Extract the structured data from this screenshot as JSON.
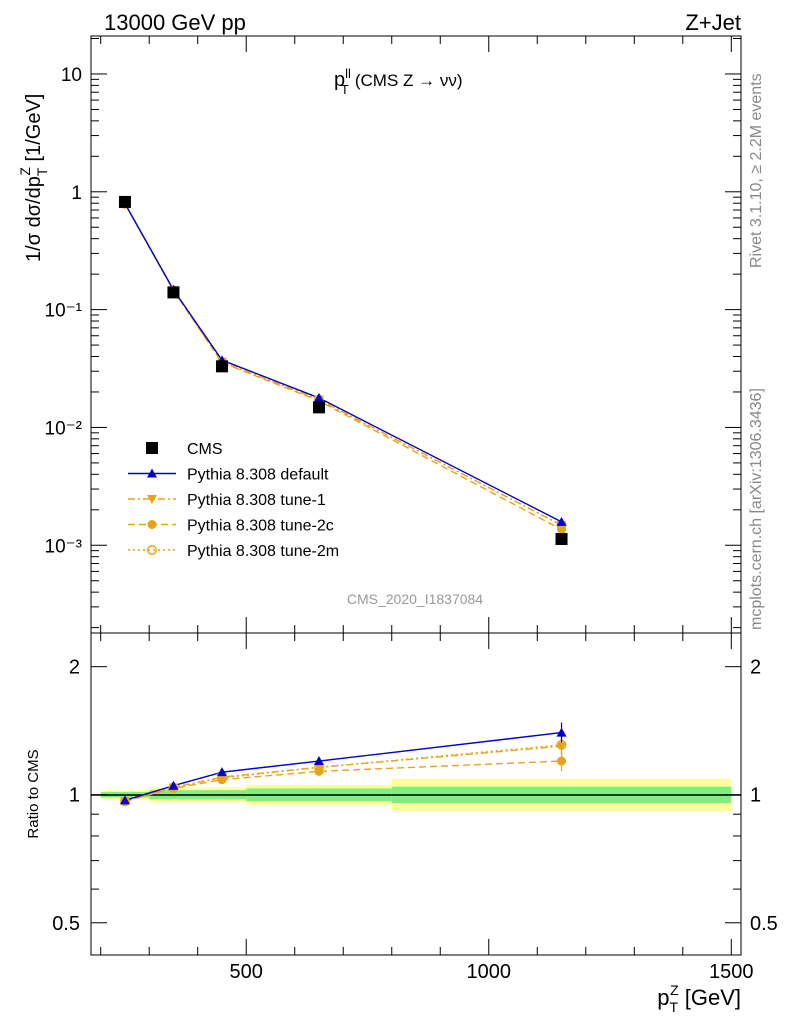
{
  "header": {
    "left": "13000 GeV pp",
    "right": "Z+Jet"
  },
  "side_text": {
    "rivet": "Rivet 3.1.10, ≥ 2.2M events",
    "mcplots": "mcplots.cern.ch [arXiv:1306.3436]"
  },
  "chart_data": [
    {
      "type": "line",
      "title": "p_T^ll (CMS Z → νν)",
      "title_parts": {
        "main": "p",
        "sup": "ll",
        "sub": "T",
        "rest": "(CMS Z → νν)"
      },
      "watermark": "CMS_2020_I1837084",
      "ylabel": "1/σ dσ/dp_T^Z [1/GeV]",
      "ylabel_parts": {
        "pre": "1/σ dσ/dp",
        "sub": "T",
        "sup": "Z",
        "post": " [1/GeV]"
      },
      "yscale": "log",
      "ylim": [
        0.00018,
        21
      ],
      "xlim": [
        180,
        1520
      ],
      "ytick_labels": [
        "10⁻³",
        "10⁻²",
        "10⁻¹",
        "1",
        "10"
      ],
      "x": [
        250,
        350,
        450,
        650,
        1150
      ],
      "series": [
        {
          "name": "CMS",
          "marker": "square",
          "color": "#000000",
          "values": [
            0.82,
            0.14,
            0.033,
            0.0148,
            0.00113
          ]
        },
        {
          "name": "Pythia 8.308 default",
          "marker": "triangle-up",
          "color": "#0000cc",
          "dash": "solid",
          "values": [
            0.795,
            0.147,
            0.0372,
            0.0178,
            0.00158
          ]
        },
        {
          "name": "Pythia 8.308 tune-1",
          "marker": "triangle-down",
          "color": "#e8a317",
          "dash": "dashdot",
          "values": [
            0.79,
            0.146,
            0.036,
            0.0172,
            0.00148
          ]
        },
        {
          "name": "Pythia 8.308 tune-2c",
          "marker": "circle-filled",
          "color": "#e8a317",
          "dash": "dashed",
          "values": [
            0.79,
            0.145,
            0.0355,
            0.0168,
            0.00136
          ]
        },
        {
          "name": "Pythia 8.308 tune-2m",
          "marker": "circle-open",
          "color": "#e8a317",
          "dash": "dotted",
          "values": [
            0.79,
            0.146,
            0.0358,
            0.0172,
            0.00148
          ]
        }
      ],
      "legend_position": "lower-left"
    },
    {
      "type": "line",
      "ylabel": "Ratio to CMS",
      "yscale": "log",
      "ylim": [
        0.42,
        2.4
      ],
      "xlabel": "p_T^Z [GeV]",
      "xlabel_parts": {
        "main": "p",
        "sub": "T",
        "sup": "Z",
        "post": " [GeV]"
      },
      "xlim": [
        180,
        1520
      ],
      "xticks": [
        500,
        1000,
        1500
      ],
      "xtick_labels": [
        "500",
        "1000",
        "1500"
      ],
      "ytick_labels": [
        "0.5",
        "1",
        "2"
      ],
      "bands": [
        {
          "x_low": 200,
          "x_high": 300,
          "stat": [
            0.985,
            1.015
          ],
          "total": [
            0.975,
            1.025
          ]
        },
        {
          "x_low": 300,
          "x_high": 500,
          "stat": [
            0.975,
            1.025
          ],
          "total": [
            0.96,
            1.04
          ]
        },
        {
          "x_low": 500,
          "x_high": 800,
          "stat": [
            0.965,
            1.035
          ],
          "total": [
            0.945,
            1.055
          ]
        },
        {
          "x_low": 800,
          "x_high": 1500,
          "stat": [
            0.955,
            1.045
          ],
          "total": [
            0.915,
            1.09
          ]
        }
      ],
      "band_colors": {
        "stat": "#7ff07f",
        "total": "#ffff99"
      },
      "x": [
        250,
        350,
        450,
        650,
        1150
      ],
      "series": [
        {
          "name": "Pythia 8.308 default",
          "values": [
            0.97,
            1.05,
            1.13,
            1.2,
            1.4
          ]
        },
        {
          "name": "Pythia 8.308 tune-1",
          "values": [
            0.965,
            1.04,
            1.1,
            1.16,
            1.3
          ]
        },
        {
          "name": "Pythia 8.308 tune-2c",
          "values": [
            0.965,
            1.035,
            1.085,
            1.135,
            1.2
          ]
        },
        {
          "name": "Pythia 8.308 tune-2m",
          "values": [
            0.965,
            1.04,
            1.095,
            1.16,
            1.31
          ]
        }
      ]
    }
  ]
}
